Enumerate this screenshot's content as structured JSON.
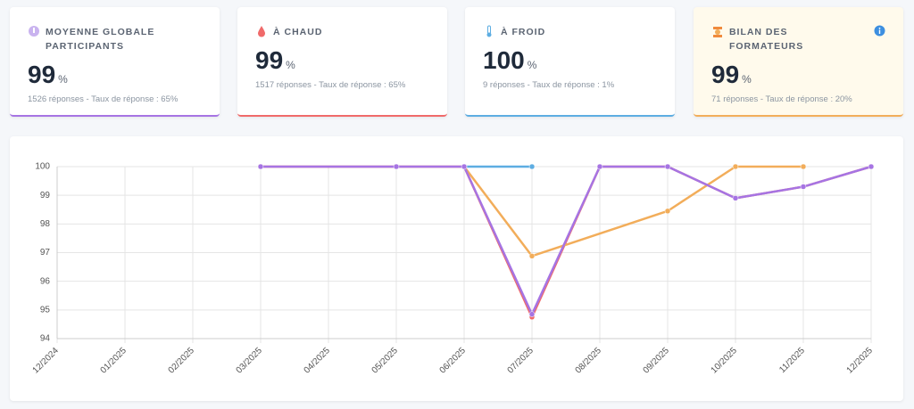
{
  "cards": [
    {
      "title": "MOYENNE GLOBALE PARTICIPANTS",
      "value": 99,
      "unit": "%",
      "subtitle": "1526 réponses - Taux de réponse : 65%"
    },
    {
      "title": "À CHAUD",
      "value": 99,
      "unit": "%",
      "subtitle": "1517 réponses - Taux de réponse : 65%"
    },
    {
      "title": "À FROID",
      "value": 100,
      "unit": "%",
      "subtitle": "9 réponses - Taux de réponse : 1%"
    },
    {
      "title": "BILAN DES FORMATEURS",
      "value": 99,
      "unit": "%",
      "subtitle": "71 réponses - Taux de réponse : 20%"
    }
  ],
  "chart_data": {
    "type": "line",
    "categories": [
      "12/2024",
      "01/2025",
      "02/2025",
      "03/2025",
      "04/2025",
      "05/2025",
      "06/2025",
      "07/2025",
      "08/2025",
      "09/2025",
      "10/2025",
      "11/2025",
      "12/2025"
    ],
    "series": [
      {
        "color": "#f06a6a",
        "values": [
          null,
          null,
          null,
          100,
          null,
          100,
          100,
          94.75,
          100,
          100,
          98.9,
          99.3,
          100
        ]
      },
      {
        "color": "#5dade2",
        "values": [
          null,
          null,
          null,
          null,
          null,
          null,
          100,
          100,
          null,
          null,
          null,
          null,
          null
        ]
      },
      {
        "color": "#f2ad5a",
        "values": [
          null,
          null,
          null,
          null,
          null,
          null,
          100,
          96.88,
          null,
          98.45,
          100,
          100,
          null
        ]
      },
      {
        "color": "#a674e3",
        "values": [
          null,
          null,
          null,
          100,
          null,
          100,
          100,
          94.85,
          100,
          100,
          98.9,
          99.3,
          100
        ]
      }
    ],
    "ylim": [
      94,
      100
    ],
    "yticks": [
      94,
      95,
      96,
      97,
      98,
      99,
      100
    ],
    "grid": true,
    "span_gaps": true
  }
}
